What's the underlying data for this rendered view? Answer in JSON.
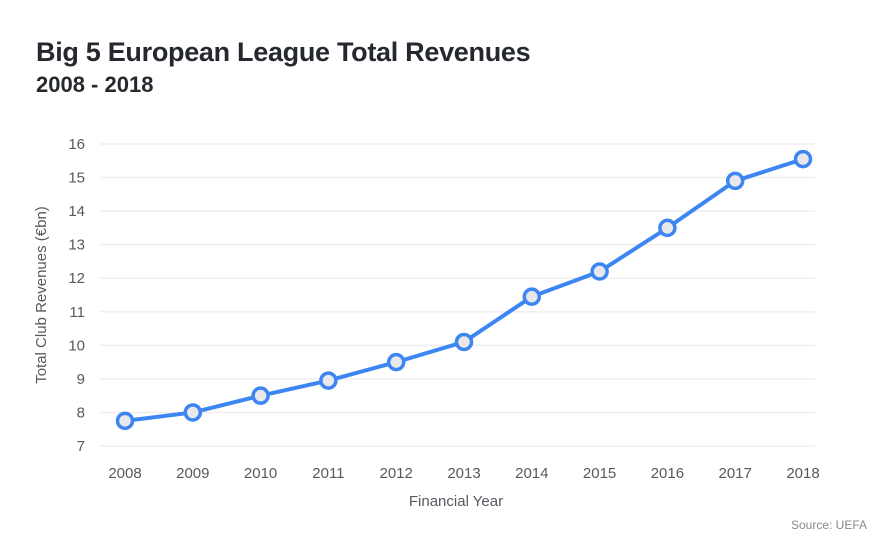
{
  "chart_data": {
    "type": "line",
    "title": "Big 5 European League Total Revenues",
    "subtitle": "2008 - 2018",
    "xlabel": "Financial Year",
    "ylabel": "Total Club Revenues (€bn)",
    "source": "Source: UEFA",
    "categories": [
      "2008",
      "2009",
      "2010",
      "2011",
      "2012",
      "2013",
      "2014",
      "2015",
      "2016",
      "2017",
      "2018"
    ],
    "series": [
      {
        "name": "Total Club Revenues",
        "values": [
          7.75,
          8.0,
          8.5,
          8.95,
          9.5,
          10.1,
          11.45,
          12.2,
          13.5,
          14.9,
          15.55
        ],
        "color": "#3d86f2",
        "marker_fill": "#e8e8ea"
      }
    ],
    "yticks": [
      "7",
      "8",
      "9",
      "10",
      "11",
      "12",
      "13",
      "14",
      "15",
      "16"
    ],
    "ylim": [
      7,
      16
    ],
    "grid": true,
    "grid_color": "#efefef",
    "legend": "none"
  }
}
